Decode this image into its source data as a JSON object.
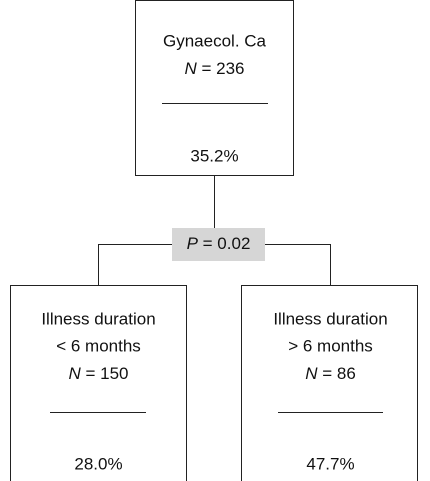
{
  "nodes": [
    {
      "lines": [
        "Gynaecol. Ca"
      ],
      "n": "N = 236",
      "percent": "35.2%"
    },
    {
      "lines": [
        "Illness duration",
        "< 6 months"
      ],
      "n": "N = 150",
      "percent": "28.0%"
    },
    {
      "lines": [
        "Illness duration",
        "> 6 months"
      ],
      "n": "N = 86",
      "percent": "47.7%"
    }
  ],
  "split": {
    "p": "P = 0.02"
  }
}
